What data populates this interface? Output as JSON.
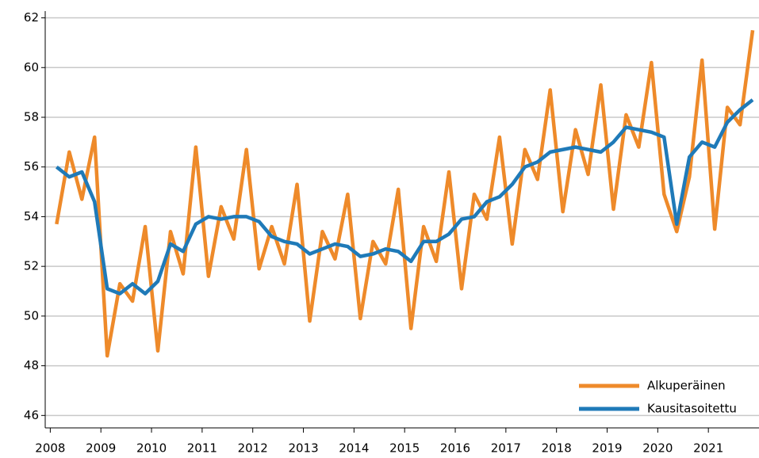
{
  "chart_data": {
    "type": "line",
    "x": [
      2008.125,
      2008.375,
      2008.625,
      2008.875,
      2009.125,
      2009.375,
      2009.625,
      2009.875,
      2010.125,
      2010.375,
      2010.625,
      2010.875,
      2011.125,
      2011.375,
      2011.625,
      2011.875,
      2012.125,
      2012.375,
      2012.625,
      2012.875,
      2013.125,
      2013.375,
      2013.625,
      2013.875,
      2014.125,
      2014.375,
      2014.625,
      2014.875,
      2015.125,
      2015.375,
      2015.625,
      2015.875,
      2016.125,
      2016.375,
      2016.625,
      2016.875,
      2017.125,
      2017.375,
      2017.625,
      2017.875,
      2018.125,
      2018.375,
      2018.625,
      2018.875,
      2019.125,
      2019.375,
      2019.625,
      2019.875,
      2020.125,
      2020.375,
      2020.625,
      2020.875,
      2021.125,
      2021.375,
      2021.625,
      2021.875
    ],
    "series": [
      {
        "name": "Alkuperäinen",
        "color": "#ee8a2a",
        "values": [
          53.7,
          56.6,
          54.7,
          57.2,
          48.4,
          51.3,
          50.6,
          53.6,
          48.6,
          53.4,
          51.7,
          56.8,
          51.6,
          54.4,
          53.1,
          56.7,
          51.9,
          53.6,
          52.1,
          55.3,
          49.8,
          53.4,
          52.3,
          54.9,
          49.9,
          53.0,
          52.1,
          55.1,
          49.5,
          53.6,
          52.2,
          55.8,
          51.1,
          54.9,
          53.9,
          57.2,
          52.9,
          56.7,
          55.5,
          59.1,
          54.2,
          57.5,
          55.7,
          59.3,
          54.3,
          58.1,
          56.8,
          60.2,
          54.9,
          53.4,
          55.6,
          60.3,
          53.5,
          58.4,
          57.7,
          61.5
        ]
      },
      {
        "name": "Kausitasoitettu",
        "color": "#1f7ab8",
        "values": [
          56.0,
          55.6,
          55.8,
          54.6,
          51.1,
          50.9,
          51.3,
          50.9,
          51.4,
          52.9,
          52.6,
          53.7,
          54.0,
          53.9,
          54.0,
          54.0,
          53.8,
          53.2,
          53.0,
          52.9,
          52.5,
          52.7,
          52.9,
          52.8,
          52.4,
          52.5,
          52.7,
          52.6,
          52.2,
          53.0,
          53.0,
          53.3,
          53.9,
          54.0,
          54.6,
          54.8,
          55.3,
          56.0,
          56.2,
          56.6,
          56.7,
          56.8,
          56.7,
          56.6,
          57.0,
          57.6,
          57.5,
          57.4,
          57.2,
          53.7,
          56.4,
          57.0,
          56.8,
          57.8,
          58.3,
          58.7
        ]
      }
    ],
    "xlim": [
      2007.9,
      2022.0
    ],
    "xticks": [
      2008,
      2009,
      2010,
      2011,
      2012,
      2013,
      2014,
      2015,
      2016,
      2017,
      2018,
      2019,
      2020,
      2021
    ],
    "ylim": [
      45.5,
      62.4
    ],
    "yticks": [
      46,
      48,
      50,
      52,
      54,
      56,
      58,
      60,
      62
    ],
    "grid": true,
    "legend": "lower right"
  }
}
